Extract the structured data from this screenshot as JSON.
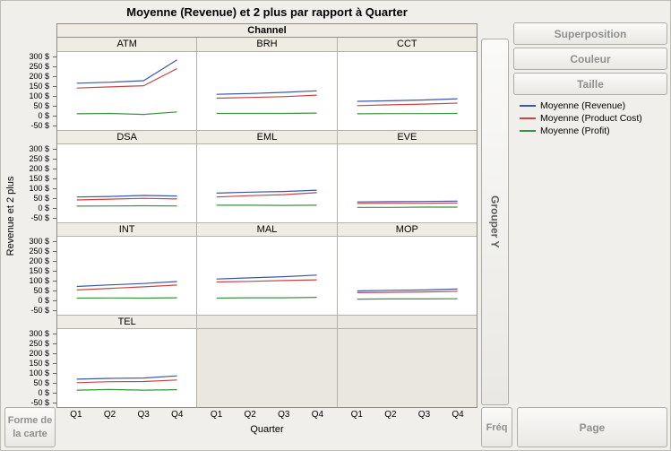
{
  "window": {
    "title": "Moyenne (Revenue) et 2 plus par rapport à Quarter"
  },
  "drop_zones": {
    "superposition": "Superposition",
    "couleur": "Couleur",
    "taille": "Taille",
    "grouper_y": "Grouper Y",
    "freq": "Fréq",
    "page": "Page",
    "map_shape": "Forme de la carte"
  },
  "legend": [
    {
      "label": "Moyenne (Revenue)",
      "color": "#3d57a8"
    },
    {
      "label": "Moyenne (Product Cost)",
      "color": "#c84545"
    },
    {
      "label": "Moyenne (Profit)",
      "color": "#3c9140"
    }
  ],
  "chart_data": {
    "type": "line",
    "title": "Moyenne (Revenue) et 2 plus par rapport à Quarter",
    "facet_header": "Channel",
    "xlabel": "Quarter",
    "ylabel": "Revenue et 2 plus",
    "x_ticks": [
      "Q1",
      "Q2",
      "Q3",
      "Q4"
    ],
    "y_ticks": [
      "300 $",
      "250 $",
      "200 $",
      "150 $",
      "100 $",
      "50 $",
      "0 $",
      "-50 $"
    ],
    "y_tick_values": [
      300,
      250,
      200,
      150,
      100,
      50,
      0,
      -50
    ],
    "ylim": [
      -75,
      325
    ],
    "grid_lines": false,
    "legend_position": "right",
    "series_names": [
      "Moyenne (Revenue)",
      "Moyenne (Product Cost)",
      "Moyenne (Profit)"
    ],
    "series_colors": [
      "#3d57a8",
      "#c84545",
      "#3c9140"
    ],
    "grid": [
      [
        "ATM",
        "BRH",
        "CCT"
      ],
      [
        "DSA",
        "EML",
        "EVE"
      ],
      [
        "INT",
        "MAL",
        "MOP"
      ],
      [
        "TEL",
        null,
        null
      ]
    ],
    "panels": [
      {
        "name": "ATM",
        "values": [
          [
            165,
            170,
            178,
            285
          ],
          [
            140,
            146,
            152,
            240
          ],
          [
            8,
            10,
            5,
            18
          ]
        ]
      },
      {
        "name": "BRH",
        "values": [
          [
            108,
            112,
            118,
            126
          ],
          [
            88,
            92,
            96,
            104
          ],
          [
            10,
            10,
            10,
            12
          ]
        ]
      },
      {
        "name": "CCT",
        "values": [
          [
            72,
            75,
            79,
            85
          ],
          [
            50,
            54,
            58,
            63
          ],
          [
            8,
            9,
            9,
            10
          ]
        ]
      },
      {
        "name": "DSA",
        "values": [
          [
            55,
            58,
            63,
            60
          ],
          [
            40,
            44,
            48,
            45
          ],
          [
            8,
            9,
            10,
            9
          ]
        ]
      },
      {
        "name": "EML",
        "values": [
          [
            75,
            80,
            83,
            90
          ],
          [
            55,
            62,
            67,
            77
          ],
          [
            13,
            13,
            12,
            13
          ]
        ]
      },
      {
        "name": "EVE",
        "values": [
          [
            30,
            31,
            32,
            34
          ],
          [
            22,
            23,
            23,
            25
          ],
          [
            2,
            2,
            3,
            3
          ]
        ]
      },
      {
        "name": "INT",
        "values": [
          [
            70,
            78,
            85,
            95
          ],
          [
            52,
            60,
            68,
            77
          ],
          [
            10,
            11,
            10,
            12
          ]
        ]
      },
      {
        "name": "MAL",
        "values": [
          [
            108,
            114,
            120,
            128
          ],
          [
            93,
            96,
            100,
            104
          ],
          [
            10,
            12,
            12,
            14
          ]
        ]
      },
      {
        "name": "MOP",
        "values": [
          [
            47,
            50,
            52,
            57
          ],
          [
            38,
            40,
            42,
            45
          ],
          [
            5,
            6,
            6,
            7
          ]
        ]
      },
      {
        "name": "TEL",
        "values": [
          [
            68,
            72,
            74,
            85
          ],
          [
            50,
            55,
            56,
            64
          ],
          [
            12,
            15,
            12,
            14
          ]
        ]
      }
    ]
  }
}
